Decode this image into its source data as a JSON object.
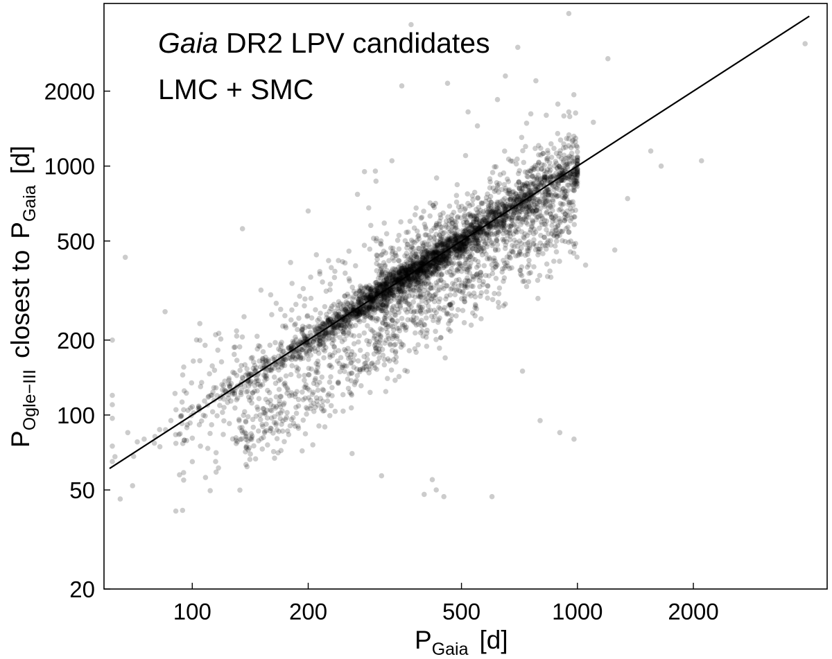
{
  "chart_data": {
    "type": "scatter",
    "title_italic": "Gaia",
    "title_rest": " DR2 LPV candidates",
    "subtitle": "LMC + SMC",
    "xlabel": {
      "main": "P",
      "sub": "Gaia",
      "unit": "[d]"
    },
    "ylabel": {
      "main": "P",
      "sub": "Ogle−III",
      "mid": "closest to",
      "main2": "P",
      "sub2": "Gaia",
      "unit": "[d]"
    },
    "xscale": "log",
    "yscale": "log",
    "xlim": [
      59,
      4450
    ],
    "ylim": [
      20,
      4500
    ],
    "xticks": [
      100,
      200,
      500,
      1000,
      2000
    ],
    "xtick_labels": [
      "100",
      "200",
      "500",
      "1000",
      "2000"
    ],
    "yticks": [
      20,
      50,
      100,
      200,
      500,
      1000,
      2000
    ],
    "ytick_labels": [
      "20",
      "50",
      "100",
      "200",
      "500",
      "1000",
      "2000"
    ],
    "grid": false,
    "legend": "none",
    "reference_line": {
      "type": "y=x",
      "x_range": [
        61,
        4000
      ]
    },
    "point_color": "#000000",
    "point_opacity": 0.2,
    "point_count_approx": 4500,
    "points": [
      [
        62,
        65
      ],
      [
        62,
        120
      ],
      [
        62,
        110
      ],
      [
        62,
        97
      ],
      [
        62,
        75
      ],
      [
        62,
        200
      ],
      [
        63,
        68
      ],
      [
        65,
        46
      ],
      [
        67,
        430
      ],
      [
        68,
        85
      ],
      [
        70,
        52
      ],
      [
        72,
        78
      ],
      [
        75,
        80
      ],
      [
        80,
        82
      ],
      [
        85,
        260
      ],
      [
        88,
        95
      ],
      [
        95,
        105
      ],
      [
        100,
        108
      ],
      [
        105,
        75
      ],
      [
        110,
        118
      ],
      [
        115,
        210
      ],
      [
        115,
        65
      ],
      [
        125,
        130
      ],
      [
        135,
        560
      ],
      [
        150,
        100
      ],
      [
        160,
        110
      ],
      [
        170,
        72
      ],
      [
        180,
        410
      ],
      [
        190,
        300
      ],
      [
        200,
        660
      ],
      [
        210,
        440
      ],
      [
        260,
        70
      ],
      [
        280,
        950
      ],
      [
        300,
        870
      ],
      [
        310,
        57
      ],
      [
        330,
        1050
      ],
      [
        350,
        2100
      ],
      [
        370,
        3700
      ],
      [
        400,
        48
      ],
      [
        420,
        55
      ],
      [
        430,
        50
      ],
      [
        450,
        47
      ],
      [
        460,
        2150
      ],
      [
        520,
        1650
      ],
      [
        550,
        1450
      ],
      [
        600,
        47
      ],
      [
        620,
        1850
      ],
      [
        650,
        2300
      ],
      [
        700,
        3000
      ],
      [
        720,
        150
      ],
      [
        780,
        2200
      ],
      [
        800,
        95
      ],
      [
        830,
        1600
      ],
      [
        900,
        85
      ],
      [
        950,
        4100
      ],
      [
        980,
        80
      ],
      [
        1050,
        400
      ],
      [
        1100,
        1500
      ],
      [
        1200,
        2700
      ],
      [
        1250,
        460
      ],
      [
        1350,
        740
      ],
      [
        1550,
        1150
      ],
      [
        1650,
        1000
      ],
      [
        2100,
        1050
      ],
      [
        3900,
        3100
      ]
    ],
    "generated_clouds": [
      {
        "count": 2000,
        "x_range": [
          65,
          1000
        ],
        "center_frac": 0.35,
        "ratio_sd": 0.06
      },
      {
        "count": 1100,
        "x_range": [
          300,
          1000
        ],
        "ratio_sd": 0.18
      },
      {
        "count": 650,
        "x_range": [
          130,
          1000
        ],
        "ratio_center": 0.62,
        "ratio_sd": 0.15
      },
      {
        "count": 500,
        "x_range": [
          90,
          1000
        ],
        "ratio_sd": 0.32
      }
    ]
  }
}
